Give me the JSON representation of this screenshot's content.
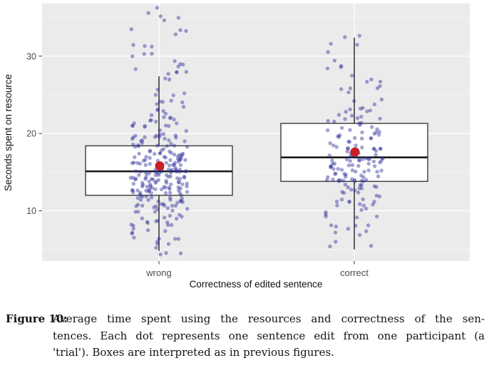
{
  "figure": {
    "caption_label": "Figure 10:",
    "caption_lines": [
      "Average time spent using the resources and correctness of the sen-",
      "tences. Each dot represents one sentence edit from one participant (a",
      "'trial'). Boxes are interpreted as in previous figures."
    ]
  },
  "chart_data": {
    "type": "boxplot-jitter",
    "title": "",
    "xlabel": "Correctness of edited sentence",
    "ylabel": "Seconds spent on resource",
    "categories": [
      "wrong",
      "correct"
    ],
    "ylim": [
      3.5,
      36.8
    ],
    "y_ticks": [
      10,
      20,
      30
    ],
    "grid": {
      "major": [
        10,
        20,
        30
      ],
      "minor": [
        5,
        15,
        25,
        35
      ]
    },
    "legend": "none",
    "groups": [
      {
        "label": "wrong",
        "whisker_low": 4.8,
        "q1": 12.0,
        "median": 15.1,
        "q3": 18.4,
        "whisker_high": 27.4,
        "mean": 15.8,
        "point_histogram": {
          "bin_edges": [
            4,
            6,
            8,
            10,
            12,
            14,
            16,
            18,
            20,
            22,
            24,
            26,
            28,
            30,
            32,
            34,
            36.5
          ],
          "counts": [
            6,
            10,
            18,
            30,
            44,
            48,
            38,
            26,
            14,
            10,
            8,
            6,
            6,
            5,
            4,
            5
          ]
        }
      },
      {
        "label": "correct",
        "whisker_low": 5.0,
        "q1": 13.8,
        "median": 16.9,
        "q3": 21.3,
        "whisker_high": 32.4,
        "mean": 17.6,
        "point_histogram": {
          "bin_edges": [
            4.5,
            6,
            8,
            10,
            12,
            14,
            16,
            18,
            20,
            22,
            24,
            26,
            28,
            30,
            32,
            33
          ],
          "counts": [
            3,
            5,
            8,
            14,
            22,
            28,
            26,
            22,
            16,
            10,
            6,
            5,
            4,
            3,
            2
          ]
        }
      }
    ],
    "colors": {
      "panel_bg": "#ebebeb",
      "grid_major": "#ffffff",
      "grid_minor": "#f6f6f6",
      "box_fill": "#ffffff",
      "box_stroke": "#3a3a3a",
      "median_stroke": "#1a1a1a",
      "whisker": "#3a3a3a",
      "point": "#31319b",
      "point_opacity": 0.45,
      "mean_dot": "#c81f26",
      "tick_label": "#4d4d4d",
      "axis_title": "#111111"
    }
  }
}
